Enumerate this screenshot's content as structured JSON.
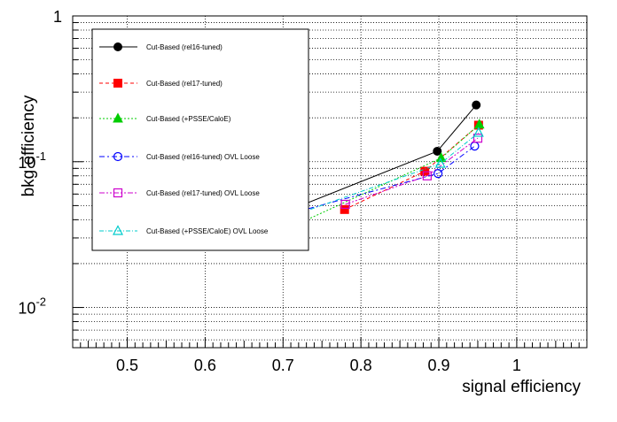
{
  "chart_data": {
    "type": "line",
    "title": "",
    "xlabel": "signal efficiency",
    "ylabel": "bkg efficiency",
    "xlim": [
      0.43,
      1.09
    ],
    "ylim": [
      0.0053,
      1.0
    ],
    "yscale": "log",
    "grid": true,
    "legend_position": "top-left",
    "x_ticks": [
      "0.5",
      "0.6",
      "0.7",
      "0.8",
      "0.9",
      "1"
    ],
    "y_ticks": [
      {
        "value": 0.01,
        "base": "10",
        "exp": "-2"
      },
      {
        "value": 0.1,
        "base": "10",
        "exp": "-1"
      },
      {
        "value": 1,
        "base": "1",
        "exp": ""
      }
    ],
    "series": [
      {
        "name": "Cut-Based (rel16-tuned)",
        "color": "#000000",
        "marker": "circle-filled",
        "dash": "solid",
        "x": [
          0.701,
          0.898,
          0.948
        ],
        "y": [
          0.045,
          0.118,
          0.245
        ]
      },
      {
        "name": "Cut-Based (rel17-tuned)",
        "color": "#ff0000",
        "marker": "square-filled",
        "dash": "4,3",
        "x": [
          0.779,
          0.882,
          0.951
        ],
        "y": [
          0.047,
          0.086,
          0.178
        ]
      },
      {
        "name": "Cut-Based (+PSSE/CaloE)",
        "color": "#00cc00",
        "marker": "triangle-filled",
        "dash": "2,2",
        "x": [
          0.702,
          0.903,
          0.952
        ],
        "y": [
          0.034,
          0.106,
          0.18
        ]
      },
      {
        "name": "Cut-Based (rel16-tuned) OVL Loose",
        "color": "#0000ff",
        "marker": "circle-open",
        "dash": "6,3,2,3",
        "x": [
          0.702,
          0.899,
          0.946
        ],
        "y": [
          0.043,
          0.083,
          0.128
        ]
      },
      {
        "name": "Cut-Based (rel17-tuned) OVL Loose",
        "color": "#cc00cc",
        "marker": "square-open",
        "dash": "6,2,2,2,2,2",
        "x": [
          0.78,
          0.885,
          0.95
        ],
        "y": [
          0.051,
          0.08,
          0.145
        ]
      },
      {
        "name": "Cut-Based (+PSSE/CaloE) OVL Loose",
        "color": "#00cccc",
        "marker": "triangle-open",
        "dash": "5,2,1,2",
        "x": [
          0.703,
          0.902,
          0.951
        ],
        "y": [
          0.041,
          0.097,
          0.158
        ]
      }
    ]
  }
}
